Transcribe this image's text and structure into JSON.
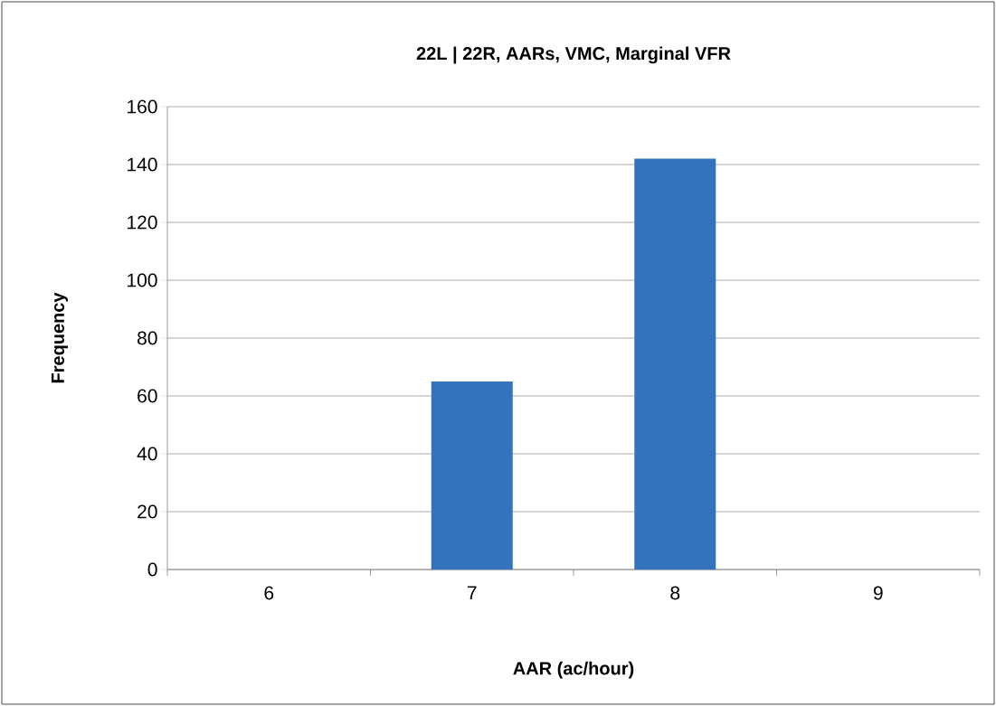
{
  "chart_data": {
    "type": "bar",
    "title": "22L | 22R, AARs, VMC, Marginal VFR",
    "xlabel": "AAR (ac/hour)",
    "ylabel": "Frequency",
    "categories": [
      "6",
      "7",
      "8",
      "9"
    ],
    "values": [
      0,
      65,
      142,
      0
    ],
    "color": "#3572be",
    "ylim": [
      0,
      160
    ],
    "yticks": [
      0,
      20,
      40,
      60,
      80,
      100,
      120,
      140,
      160
    ],
    "grid": "y"
  }
}
